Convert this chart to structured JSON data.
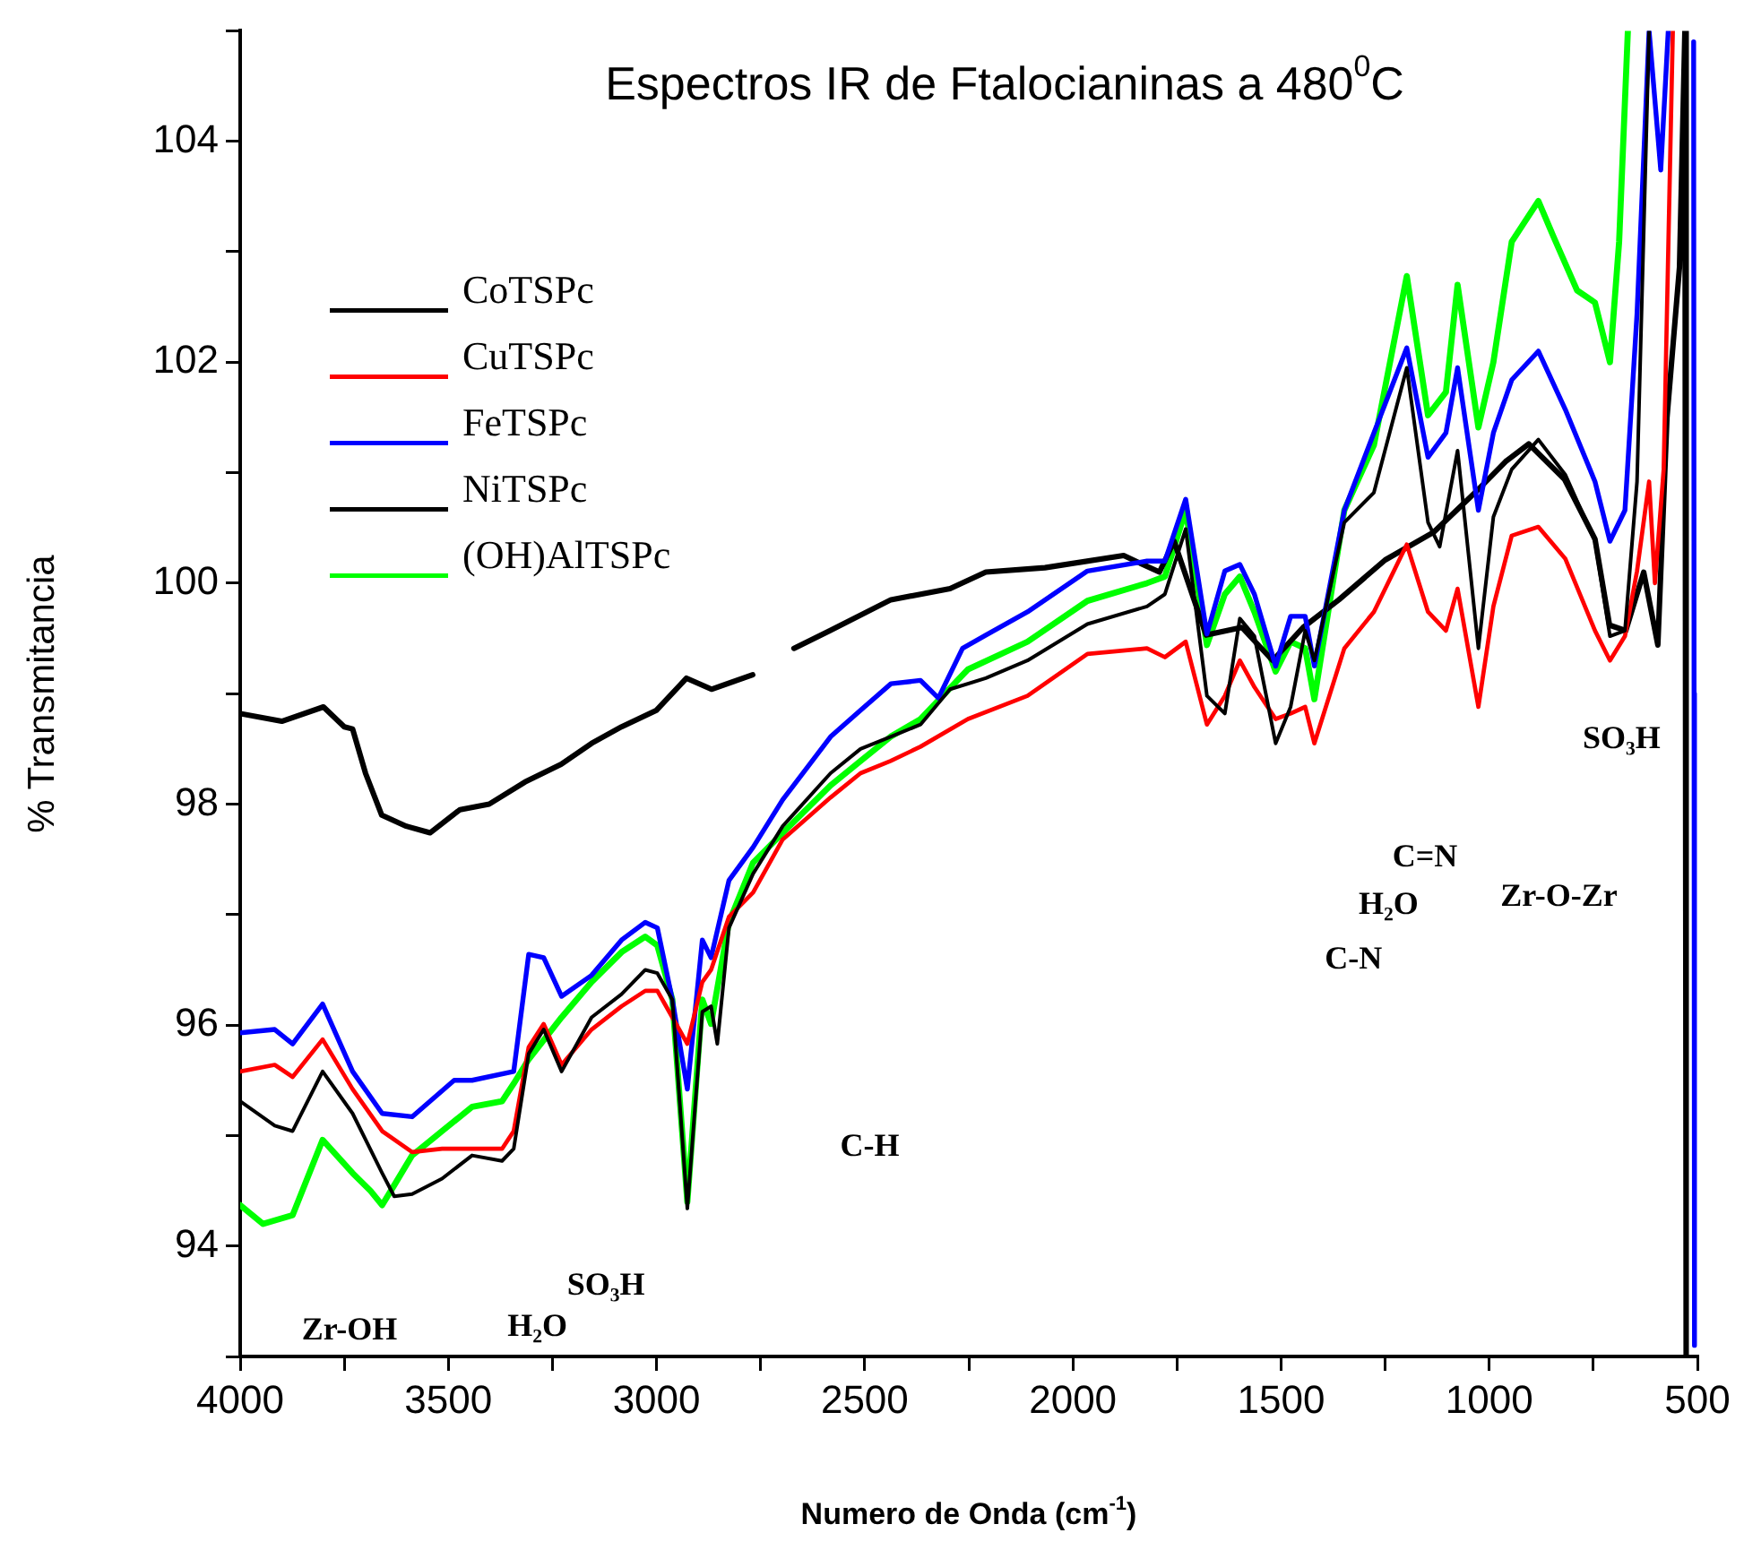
{
  "chart_data": {
    "type": "line",
    "title": "Espectros IR de Ftalocianinas a 480$^{0}$C",
    "xlabel": "Numero de Onda (cm$^{-1}$)",
    "ylabel": "% Transmitancia",
    "xlim": [
      4000,
      500
    ],
    "ylim": [
      93,
      105
    ],
    "xticks": [
      4000,
      {
        "value": 3750,
        "label": null
      },
      3500,
      {
        "value": 3250,
        "label": null
      },
      3000,
      {
        "value": 2750,
        "label": null
      },
      2500,
      {
        "value": 2250,
        "label": null
      },
      2000,
      {
        "value": 1750,
        "label": null
      },
      1500,
      {
        "value": 1250,
        "label": null
      },
      1000,
      {
        "value": 750,
        "label": null
      },
      500
    ],
    "yticks": [
      {
        "value": 93,
        "label": null
      },
      94,
      {
        "value": 95,
        "label": null
      },
      96,
      {
        "value": 97,
        "label": null
      },
      98,
      {
        "value": 99,
        "label": null
      },
      100,
      {
        "value": 101,
        "label": null
      },
      102,
      {
        "value": 103,
        "label": null
      },
      104,
      {
        "value": 105,
        "label": null
      }
    ],
    "grid": false,
    "legend": "top left",
    "marker": "none",
    "line_style": "solid",
    "series": [
      {
        "name": "CoTSPc",
        "color": "#000000",
        "x": [
          4000,
          3917,
          3874,
          3802,
          3730,
          3659,
          3630,
          3587,
          3515,
          3443,
          3371,
          3343,
          3307,
          3271,
          3228,
          3156,
          3084,
          3027,
          2998,
          2962,
          2926,
          2890,
          2869,
          2854,
          2826,
          2768,
          2697,
          2582,
          2510,
          2438,
          2366,
          2295,
          2209,
          2109,
          1965,
          1822,
          1779,
          1729,
          1678,
          1635,
          1599,
          1564,
          1513,
          1477,
          1442,
          1420,
          1348,
          1277,
          1198,
          1147,
          1119,
          1076,
          1026,
          990,
          946,
          882,
          817,
          746,
          710,
          674,
          645,
          616
        ],
        "values": [
          95.31,
          95.09,
          95.04,
          95.58,
          95.2,
          94.66,
          94.45,
          94.47,
          94.61,
          94.82,
          94.77,
          94.88,
          95.74,
          95.96,
          95.58,
          96.07,
          96.28,
          96.5,
          96.47,
          96.23,
          94.34,
          96.12,
          96.17,
          95.83,
          96.88,
          97.37,
          97.8,
          98.28,
          98.5,
          98.61,
          98.72,
          99.04,
          99.14,
          99.3,
          99.63,
          99.79,
          99.9,
          100.49,
          98.98,
          98.82,
          99.68,
          99.52,
          98.55,
          98.88,
          99.57,
          99.3,
          100.55,
          100.82,
          101.95,
          100.55,
          100.33,
          101.2,
          99.41,
          100.6,
          101.03,
          101.3,
          100.98,
          100.38,
          99.52,
          99.57,
          100.92,
          105
        ]
      },
      {
        "name": "CuTSPc",
        "color": "#ff0000",
        "x": [
          4000,
          3917,
          3874,
          3802,
          3730,
          3659,
          3587,
          3515,
          3443,
          3371,
          3343,
          3307,
          3271,
          3228,
          3156,
          3084,
          3027,
          2998,
          2962,
          2926,
          2890,
          2869,
          2826,
          2768,
          2697,
          2582,
          2510,
          2438,
          2366,
          2252,
          2109,
          1965,
          1822,
          1779,
          1729,
          1678,
          1635,
          1599,
          1564,
          1513,
          1477,
          1442,
          1420,
          1348,
          1277,
          1198,
          1147,
          1104,
          1076,
          1026,
          990,
          946,
          882,
          817,
          746,
          710,
          674,
          645,
          616,
          602,
          581,
          559
        ],
        "values": [
          95.58,
          95.64,
          95.53,
          95.87,
          95.42,
          95.04,
          94.85,
          94.88,
          94.88,
          94.88,
          95.04,
          95.8,
          96.01,
          95.64,
          95.96,
          96.17,
          96.31,
          96.31,
          96.07,
          95.83,
          96.39,
          96.5,
          96.98,
          97.2,
          97.68,
          98.06,
          98.28,
          98.39,
          98.52,
          98.77,
          98.98,
          99.36,
          99.41,
          99.33,
          99.47,
          98.72,
          98.98,
          99.3,
          99.06,
          98.77,
          98.82,
          98.88,
          98.55,
          99.41,
          99.74,
          100.35,
          99.74,
          99.57,
          99.95,
          98.88,
          99.79,
          100.43,
          100.51,
          100.22,
          99.57,
          99.3,
          99.52,
          100.11,
          100.92,
          100.0,
          101.03,
          105
        ]
      },
      {
        "name": "FeTSPc",
        "color": "#0000ff",
        "x": [
          4000,
          3917,
          3874,
          3802,
          3730,
          3659,
          3587,
          3486,
          3443,
          3343,
          3307,
          3271,
          3228,
          3156,
          3084,
          3027,
          2998,
          2962,
          2926,
          2890,
          2869,
          2826,
          2768,
          2697,
          2582,
          2510,
          2437,
          2366,
          2323,
          2265,
          2209,
          2109,
          1965,
          1822,
          1779,
          1729,
          1678,
          1635,
          1599,
          1564,
          1513,
          1477,
          1442,
          1420,
          1348,
          1277,
          1198,
          1147,
          1104,
          1076,
          1026,
          990,
          946,
          882,
          817,
          746,
          710,
          674,
          645,
          616,
          588,
          570,
          540,
          509,
          508,
          507
        ],
        "values": [
          95.93,
          95.96,
          95.83,
          96.19,
          95.58,
          95.2,
          95.17,
          95.5,
          95.5,
          95.58,
          96.64,
          96.61,
          96.26,
          96.45,
          96.77,
          96.93,
          96.88,
          96.23,
          95.42,
          96.77,
          96.61,
          97.31,
          97.61,
          98.04,
          98.61,
          98.85,
          99.09,
          99.12,
          98.96,
          99.41,
          99.53,
          99.74,
          100.11,
          100.2,
          100.2,
          100.76,
          99.54,
          100.11,
          100.17,
          99.9,
          99.25,
          99.7,
          99.7,
          99.25,
          100.66,
          101.36,
          102.13,
          101.14,
          101.36,
          101.95,
          100.66,
          101.36,
          101.84,
          102.1,
          101.57,
          100.92,
          100.38,
          100.66,
          102.44,
          105,
          103.74,
          105,
          null,
          104.9,
          99,
          93.1
        ]
      },
      {
        "name": "NiTSPc",
        "color": "#000000",
        "x": [
          4000,
          3900,
          3800,
          3750,
          3730,
          3699,
          3660,
          3601,
          3544,
          3472,
          3402,
          3316,
          3229,
          3156,
          3084,
          3000,
          2928,
          2868,
          2769,
          2720,
          2670,
          2584,
          2437,
          2295,
          2209,
          2067,
          1878,
          1792,
          1757,
          1680,
          1594,
          1520,
          1447,
          1361,
          1250,
          1134,
          1034,
          961,
          905,
          819,
          746,
          711,
          672,
          629,
          595,
          573,
          543,
          530,
          527
        ],
        "values": [
          98.82,
          98.75,
          98.88,
          98.7,
          98.68,
          98.28,
          97.9,
          97.8,
          97.74,
          97.95,
          98.0,
          98.2,
          98.36,
          98.55,
          98.7,
          98.85,
          99.14,
          99.04,
          99.17,
          null,
          99.41,
          99.57,
          99.85,
          99.95,
          100.1,
          100.14,
          100.25,
          100.1,
          100.38,
          99.53,
          99.6,
          99.3,
          99.6,
          99.85,
          100.21,
          100.46,
          100.82,
          101.1,
          101.26,
          100.94,
          100.4,
          99.62,
          99.57,
          100.1,
          99.44,
          101.5,
          102.86,
          105,
          93
        ]
      },
      {
        "name": "(OH)AlTSPc",
        "color": "#00ff00",
        "x": [
          4000,
          3945,
          3874,
          3802,
          3730,
          3687,
          3659,
          3630,
          3587,
          3515,
          3443,
          3371,
          3343,
          3307,
          3228,
          3156,
          3084,
          3027,
          2998,
          2962,
          2926,
          2890,
          2869,
          2826,
          2768,
          2697,
          2582,
          2510,
          2438,
          2366,
          2252,
          2109,
          1965,
          1822,
          1779,
          1729,
          1678,
          1635,
          1599,
          1564,
          1513,
          1477,
          1442,
          1420,
          1348,
          1277,
          1198,
          1147,
          1104,
          1076,
          1026,
          990,
          946,
          882,
          846,
          789,
          746,
          710,
          688,
          667
        ],
        "values": [
          94.37,
          94.2,
          94.28,
          94.96,
          94.66,
          94.5,
          94.37,
          94.55,
          94.82,
          95.04,
          95.26,
          95.31,
          95.47,
          95.69,
          96.07,
          96.39,
          96.66,
          96.8,
          96.72,
          96.23,
          94.4,
          96.23,
          96.01,
          96.93,
          97.47,
          97.74,
          98.17,
          98.39,
          98.61,
          98.77,
          99.22,
          99.47,
          99.84,
          100.0,
          100.06,
          100.66,
          99.44,
          99.9,
          100.06,
          99.74,
          99.2,
          99.47,
          99.41,
          98.95,
          100.66,
          101.25,
          102.78,
          101.52,
          101.73,
          102.7,
          101.41,
          102.0,
          103.09,
          103.46,
          103.14,
          102.65,
          102.54,
          102.0,
          103.09,
          105
        ]
      }
    ],
    "annotations": [
      "C-H",
      "SO₃H",
      "Zr-OH",
      "H₂O",
      "C=N",
      "H₂O",
      "C-N",
      "Zr-O-Zr",
      "SO₃H"
    ]
  }
}
